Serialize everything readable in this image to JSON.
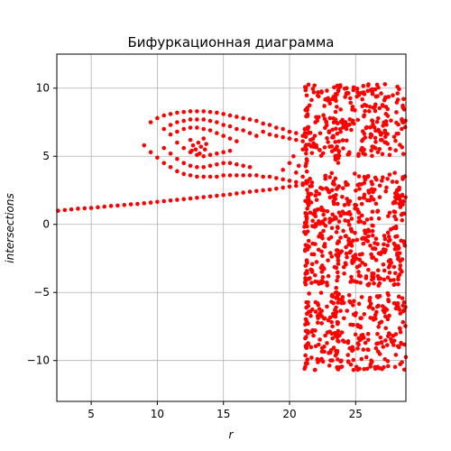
{
  "chart_data": {
    "type": "scatter",
    "title": "Бифуркационная диаграмма",
    "xlabel": "r",
    "ylabel": "intersections",
    "xlim": [
      2.4,
      28.8
    ],
    "ylim": [
      -13,
      12.5
    ],
    "xticks": [
      5,
      10,
      15,
      20,
      25
    ],
    "yticks": [
      -10,
      -5,
      0,
      5,
      10
    ],
    "xtick_labels": [
      "5",
      "10",
      "15",
      "20",
      "25"
    ],
    "ytick_labels": [
      "−10",
      "−5",
      "0",
      "5",
      "10"
    ],
    "grid": true,
    "marker_color": "#ff0000",
    "series": [
      {
        "points": [
          [
            2.5,
            1.0
          ],
          [
            3.0,
            1.05
          ],
          [
            3.5,
            1.1
          ],
          [
            4.0,
            1.15
          ],
          [
            4.5,
            1.18
          ],
          [
            5.0,
            1.2
          ],
          [
            5.5,
            1.25
          ],
          [
            6.0,
            1.3
          ],
          [
            6.5,
            1.35
          ],
          [
            7.0,
            1.38
          ],
          [
            7.5,
            1.42
          ],
          [
            8.0,
            1.47
          ],
          [
            8.5,
            1.5
          ],
          [
            9.0,
            1.55
          ],
          [
            9.5,
            1.6
          ],
          [
            10.0,
            1.65
          ],
          [
            10.5,
            1.7
          ],
          [
            11.0,
            1.75
          ],
          [
            11.5,
            1.8
          ],
          [
            12.0,
            1.85
          ],
          [
            12.5,
            1.9
          ],
          [
            13.0,
            1.95
          ],
          [
            13.5,
            2.0
          ],
          [
            14.0,
            2.05
          ],
          [
            14.5,
            2.1
          ],
          [
            15.0,
            2.15
          ],
          [
            15.5,
            2.2
          ],
          [
            16.0,
            2.27
          ],
          [
            16.5,
            2.33
          ],
          [
            17.0,
            2.4
          ],
          [
            17.5,
            2.45
          ],
          [
            18.0,
            2.5
          ],
          [
            18.5,
            2.55
          ],
          [
            19.0,
            2.62
          ],
          [
            19.5,
            2.7
          ],
          [
            20.0,
            2.77
          ],
          [
            20.5,
            2.83
          ],
          [
            21.0,
            2.9
          ],
          [
            9.5,
            7.5
          ],
          [
            10.0,
            7.8
          ],
          [
            10.5,
            8.0
          ],
          [
            11.0,
            8.1
          ],
          [
            11.5,
            8.2
          ],
          [
            12.0,
            8.25
          ],
          [
            12.5,
            8.3
          ],
          [
            13.0,
            8.3
          ],
          [
            13.5,
            8.3
          ],
          [
            14.0,
            8.25
          ],
          [
            14.5,
            8.2
          ],
          [
            15.0,
            8.1
          ],
          [
            15.5,
            8.0
          ],
          [
            16.0,
            7.9
          ],
          [
            16.5,
            7.8
          ],
          [
            17.0,
            7.7
          ],
          [
            17.5,
            7.6
          ],
          [
            18.0,
            7.4
          ],
          [
            18.5,
            7.3
          ],
          [
            19.0,
            7.1
          ],
          [
            19.5,
            7.0
          ],
          [
            20.0,
            6.8
          ],
          [
            20.5,
            6.7
          ],
          [
            21.0,
            6.5
          ],
          [
            10.5,
            7.0
          ],
          [
            11.0,
            7.3
          ],
          [
            11.5,
            7.5
          ],
          [
            12.0,
            7.6
          ],
          [
            12.5,
            7.7
          ],
          [
            13.0,
            7.7
          ],
          [
            13.5,
            7.7
          ],
          [
            14.0,
            7.6
          ],
          [
            14.5,
            7.5
          ],
          [
            15.0,
            7.3
          ],
          [
            15.5,
            7.2
          ],
          [
            16.0,
            7.0
          ],
          [
            16.5,
            6.9
          ],
          [
            17.0,
            6.7
          ],
          [
            17.5,
            6.5
          ],
          [
            11.0,
            6.6
          ],
          [
            11.5,
            6.8
          ],
          [
            12.0,
            7.0
          ],
          [
            12.5,
            7.1
          ],
          [
            13.0,
            7.1
          ],
          [
            13.5,
            7.0
          ],
          [
            14.0,
            6.9
          ],
          [
            14.5,
            6.7
          ],
          [
            15.0,
            6.5
          ],
          [
            15.5,
            6.3
          ],
          [
            16.0,
            6.1
          ],
          [
            9.0,
            5.8
          ],
          [
            9.5,
            5.3
          ],
          [
            10.0,
            4.9
          ],
          [
            10.5,
            4.5
          ],
          [
            11.0,
            4.2
          ],
          [
            11.5,
            3.9
          ],
          [
            12.0,
            3.7
          ],
          [
            12.5,
            3.6
          ],
          [
            13.0,
            3.5
          ],
          [
            13.5,
            3.5
          ],
          [
            14.0,
            3.5
          ],
          [
            14.5,
            3.5
          ],
          [
            15.0,
            3.6
          ],
          [
            15.5,
            3.6
          ],
          [
            16.0,
            3.6
          ],
          [
            16.5,
            3.6
          ],
          [
            17.0,
            3.6
          ],
          [
            17.5,
            3.6
          ],
          [
            18.0,
            3.5
          ],
          [
            18.5,
            3.5
          ],
          [
            19.0,
            3.4
          ],
          [
            19.5,
            3.3
          ],
          [
            20.0,
            3.2
          ],
          [
            20.5,
            3.1
          ],
          [
            21.0,
            3.0
          ],
          [
            10.5,
            5.6
          ],
          [
            11.0,
            5.2
          ],
          [
            11.5,
            4.8
          ],
          [
            12.0,
            4.5
          ],
          [
            12.5,
            4.3
          ],
          [
            13.0,
            4.2
          ],
          [
            13.5,
            4.2
          ],
          [
            14.0,
            4.3
          ],
          [
            14.5,
            4.4
          ],
          [
            15.0,
            4.5
          ],
          [
            15.5,
            4.5
          ],
          [
            16.0,
            4.4
          ],
          [
            16.5,
            4.3
          ],
          [
            17.0,
            4.2
          ],
          [
            11.5,
            6.0
          ],
          [
            12.0,
            5.6
          ],
          [
            12.5,
            5.3
          ],
          [
            13.0,
            5.1
          ],
          [
            13.5,
            5.0
          ],
          [
            14.0,
            5.1
          ],
          [
            14.5,
            5.2
          ],
          [
            15.0,
            5.3
          ],
          [
            15.5,
            5.4
          ],
          [
            12.5,
            6.2
          ],
          [
            12.7,
            5.8
          ],
          [
            12.9,
            5.5
          ],
          [
            13.1,
            6.0
          ],
          [
            13.3,
            5.7
          ],
          [
            13.5,
            6.3
          ],
          [
            13.7,
            5.9
          ],
          [
            12.6,
            5.4
          ],
          [
            13.2,
            5.2
          ],
          [
            13.6,
            5.5
          ],
          [
            18.0,
            6.8
          ],
          [
            18.5,
            6.6
          ],
          [
            19.0,
            6.5
          ],
          [
            19.5,
            6.4
          ],
          [
            20.0,
            6.3
          ],
          [
            20.5,
            6.2
          ],
          [
            21.0,
            6.1
          ],
          [
            19.5,
            4.0
          ],
          [
            20.0,
            4.5
          ],
          [
            20.3,
            5.0
          ],
          [
            20.5,
            3.8
          ],
          [
            20.7,
            4.3
          ],
          [
            21.0,
            5.5
          ],
          [
            21.0,
            3.5
          ]
        ]
      }
    ]
  }
}
